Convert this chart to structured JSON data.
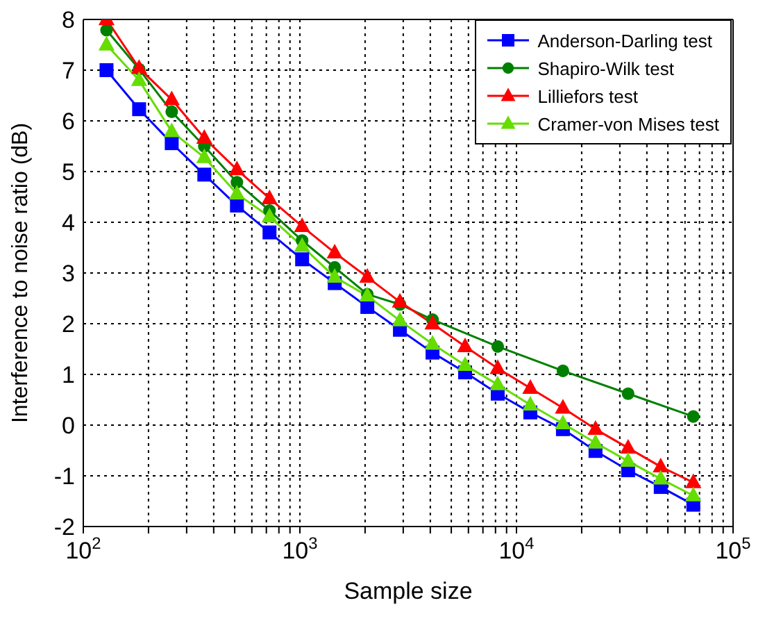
{
  "chart_data": {
    "type": "line",
    "xlabel": "Sample size",
    "ylabel": "Interference to noise ratio (dB)",
    "log": "x",
    "grid": true,
    "legend": "top right",
    "line_style": "solid",
    "xlim": [
      100,
      100000
    ],
    "ylim": [
      -2,
      8
    ],
    "xticks": [
      {
        "value": 100,
        "label": "10$^{2}$"
      },
      {
        "value": 200,
        "label": null
      },
      {
        "value": 300,
        "label": null
      },
      {
        "value": 400,
        "label": null
      },
      {
        "value": 500,
        "label": null
      },
      {
        "value": 600,
        "label": null
      },
      {
        "value": 700,
        "label": null
      },
      {
        "value": 800,
        "label": null
      },
      {
        "value": 900,
        "label": null
      },
      {
        "value": 1000,
        "label": "10$^{3}$"
      },
      {
        "value": 2000,
        "label": null
      },
      {
        "value": 3000,
        "label": null
      },
      {
        "value": 4000,
        "label": null
      },
      {
        "value": 5000,
        "label": null
      },
      {
        "value": 6000,
        "label": null
      },
      {
        "value": 7000,
        "label": null
      },
      {
        "value": 8000,
        "label": null
      },
      {
        "value": 9000,
        "label": null
      },
      {
        "value": 10000,
        "label": "10$^{4}$"
      },
      {
        "value": 20000,
        "label": null
      },
      {
        "value": 30000,
        "label": null
      },
      {
        "value": 40000,
        "label": null
      },
      {
        "value": 50000,
        "label": null
      },
      {
        "value": 60000,
        "label": null
      },
      {
        "value": 70000,
        "label": null
      },
      {
        "value": 80000,
        "label": null
      },
      {
        "value": 90000,
        "label": null
      },
      {
        "value": 100000,
        "label": "10$^{5}$"
      }
    ],
    "yticks": [
      -2,
      -1,
      0,
      1,
      2,
      3,
      4,
      5,
      6,
      7,
      8
    ],
    "series": [
      {
        "name": "Anderson-Darling test",
        "color": "#0000ff",
        "marker": "square",
        "x": [
          128,
          181,
          256,
          362,
          512,
          724,
          1024,
          1448,
          2048,
          2896,
          4096,
          5793,
          8192,
          11585,
          16384,
          23170,
          32768,
          46341,
          65536
        ],
        "values": [
          7.0,
          6.23,
          5.56,
          4.94,
          4.33,
          3.8,
          3.27,
          2.8,
          2.33,
          1.88,
          1.43,
          1.04,
          0.62,
          0.25,
          -0.08,
          -0.51,
          -0.89,
          -1.22,
          -1.57
        ]
      },
      {
        "name": "Shapiro-Wilk test",
        "color": "#008000",
        "marker": "circle",
        "x": [
          128,
          181,
          256,
          362,
          512,
          724,
          1024,
          1448,
          2048,
          2896,
          4096,
          8192,
          16384,
          32768,
          65536
        ],
        "values": [
          7.79,
          7.02,
          6.18,
          5.5,
          4.79,
          4.23,
          3.64,
          3.11,
          2.58,
          2.38,
          2.08,
          1.55,
          1.07,
          0.62,
          0.17
        ]
      },
      {
        "name": "Lilliefors test",
        "color": "#ff0000",
        "marker": "triangle",
        "x": [
          128,
          181,
          256,
          362,
          512,
          724,
          1024,
          1448,
          2048,
          2896,
          4096,
          5793,
          8192,
          11585,
          16384,
          23170,
          32768,
          46341,
          65536
        ],
        "values": [
          8.0,
          7.04,
          6.42,
          5.66,
          5.04,
          4.47,
          3.92,
          3.4,
          2.92,
          2.43,
          2.0,
          1.55,
          1.12,
          0.73,
          0.34,
          -0.08,
          -0.45,
          -0.82,
          -1.13
        ]
      },
      {
        "name": "Cramer-von Mises test",
        "color": "#66dd00",
        "marker": "triangle",
        "x": [
          128,
          181,
          256,
          362,
          512,
          724,
          1024,
          1448,
          2048,
          2896,
          4096,
          5793,
          8192,
          11585,
          16384,
          23170,
          32768,
          46341,
          65536
        ],
        "values": [
          7.5,
          6.8,
          5.79,
          5.28,
          4.56,
          4.11,
          3.53,
          2.92,
          2.55,
          2.06,
          1.6,
          1.18,
          0.8,
          0.4,
          0.03,
          -0.35,
          -0.71,
          -1.06,
          -1.39
        ]
      }
    ]
  }
}
